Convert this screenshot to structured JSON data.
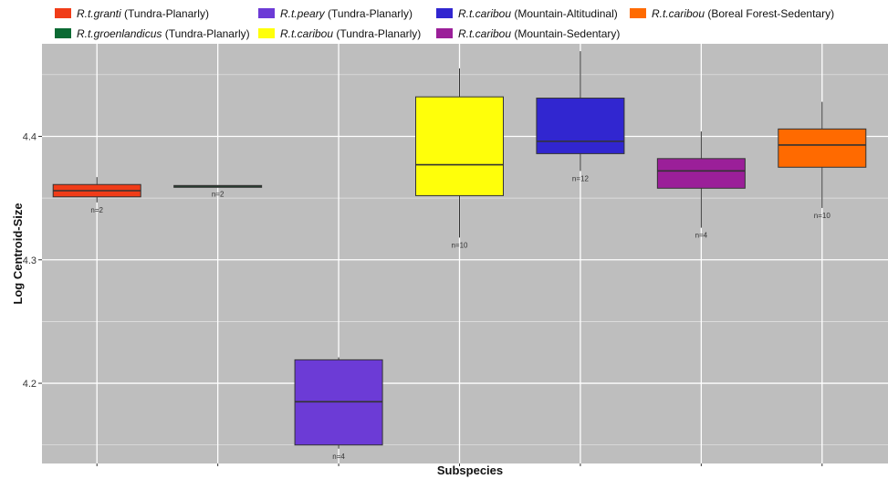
{
  "chart_data": {
    "type": "box",
    "xlabel": "Subspecies",
    "ylabel": "Log Centroid-Size",
    "ylim": [
      4.135,
      4.475
    ],
    "yticks": [
      4.2,
      4.3,
      4.4
    ],
    "ytick_labels": [
      "4.2",
      "4.3",
      "4.4"
    ],
    "grid": true,
    "legend_position": "top",
    "series": [
      {
        "name_italic": "R.t.granti",
        "name_rest": " (Tundra-Planarly)",
        "color": "#f03c18",
        "min": 4.3465,
        "q1": 4.351,
        "median": 4.356,
        "q3": 4.361,
        "max": 4.367,
        "n_label": "n=2"
      },
      {
        "name_italic": "R.t.groenlandicus",
        "name_rest": " (Tundra-Planarly)",
        "color": "#0b6a33",
        "min": 4.3595,
        "q1": 4.3595,
        "median": 4.3598,
        "q3": 4.3602,
        "max": 4.3605,
        "n_label": "n=2"
      },
      {
        "name_italic": "R.t.peary",
        "name_rest": " (Tundra-Planarly)",
        "color": "#6c3bd6",
        "min": 4.147,
        "q1": 4.15,
        "median": 4.185,
        "q3": 4.219,
        "max": 4.221,
        "n_label": "n=4"
      },
      {
        "name_italic": "R.t.caribou",
        "name_rest": " (Tundra-Planarly)",
        "color": "#ffff0a",
        "min": 4.318,
        "q1": 4.352,
        "median": 4.377,
        "q3": 4.432,
        "max": 4.455,
        "n_label": "n=10"
      },
      {
        "name_italic": "R.t.caribou",
        "name_rest": " (Mountain-Altitudinal)",
        "color": "#3126d0",
        "min": 4.372,
        "q1": 4.386,
        "median": 4.396,
        "q3": 4.431,
        "max": 4.469,
        "n_label": "n=12"
      },
      {
        "name_italic": "R.t.caribou",
        "name_rest": " (Mountain-Sedentary)",
        "color": "#9b1f99",
        "min": 4.326,
        "q1": 4.358,
        "median": 4.372,
        "q3": 4.382,
        "max": 4.404,
        "n_label": "n=4"
      },
      {
        "name_italic": "R.t.caribou",
        "name_rest": " (Boreal Forest-Sedentary)",
        "color": "#ff6a00",
        "min": 4.342,
        "q1": 4.375,
        "median": 4.393,
        "q3": 4.406,
        "max": 4.428,
        "n_label": "n=10"
      }
    ]
  }
}
